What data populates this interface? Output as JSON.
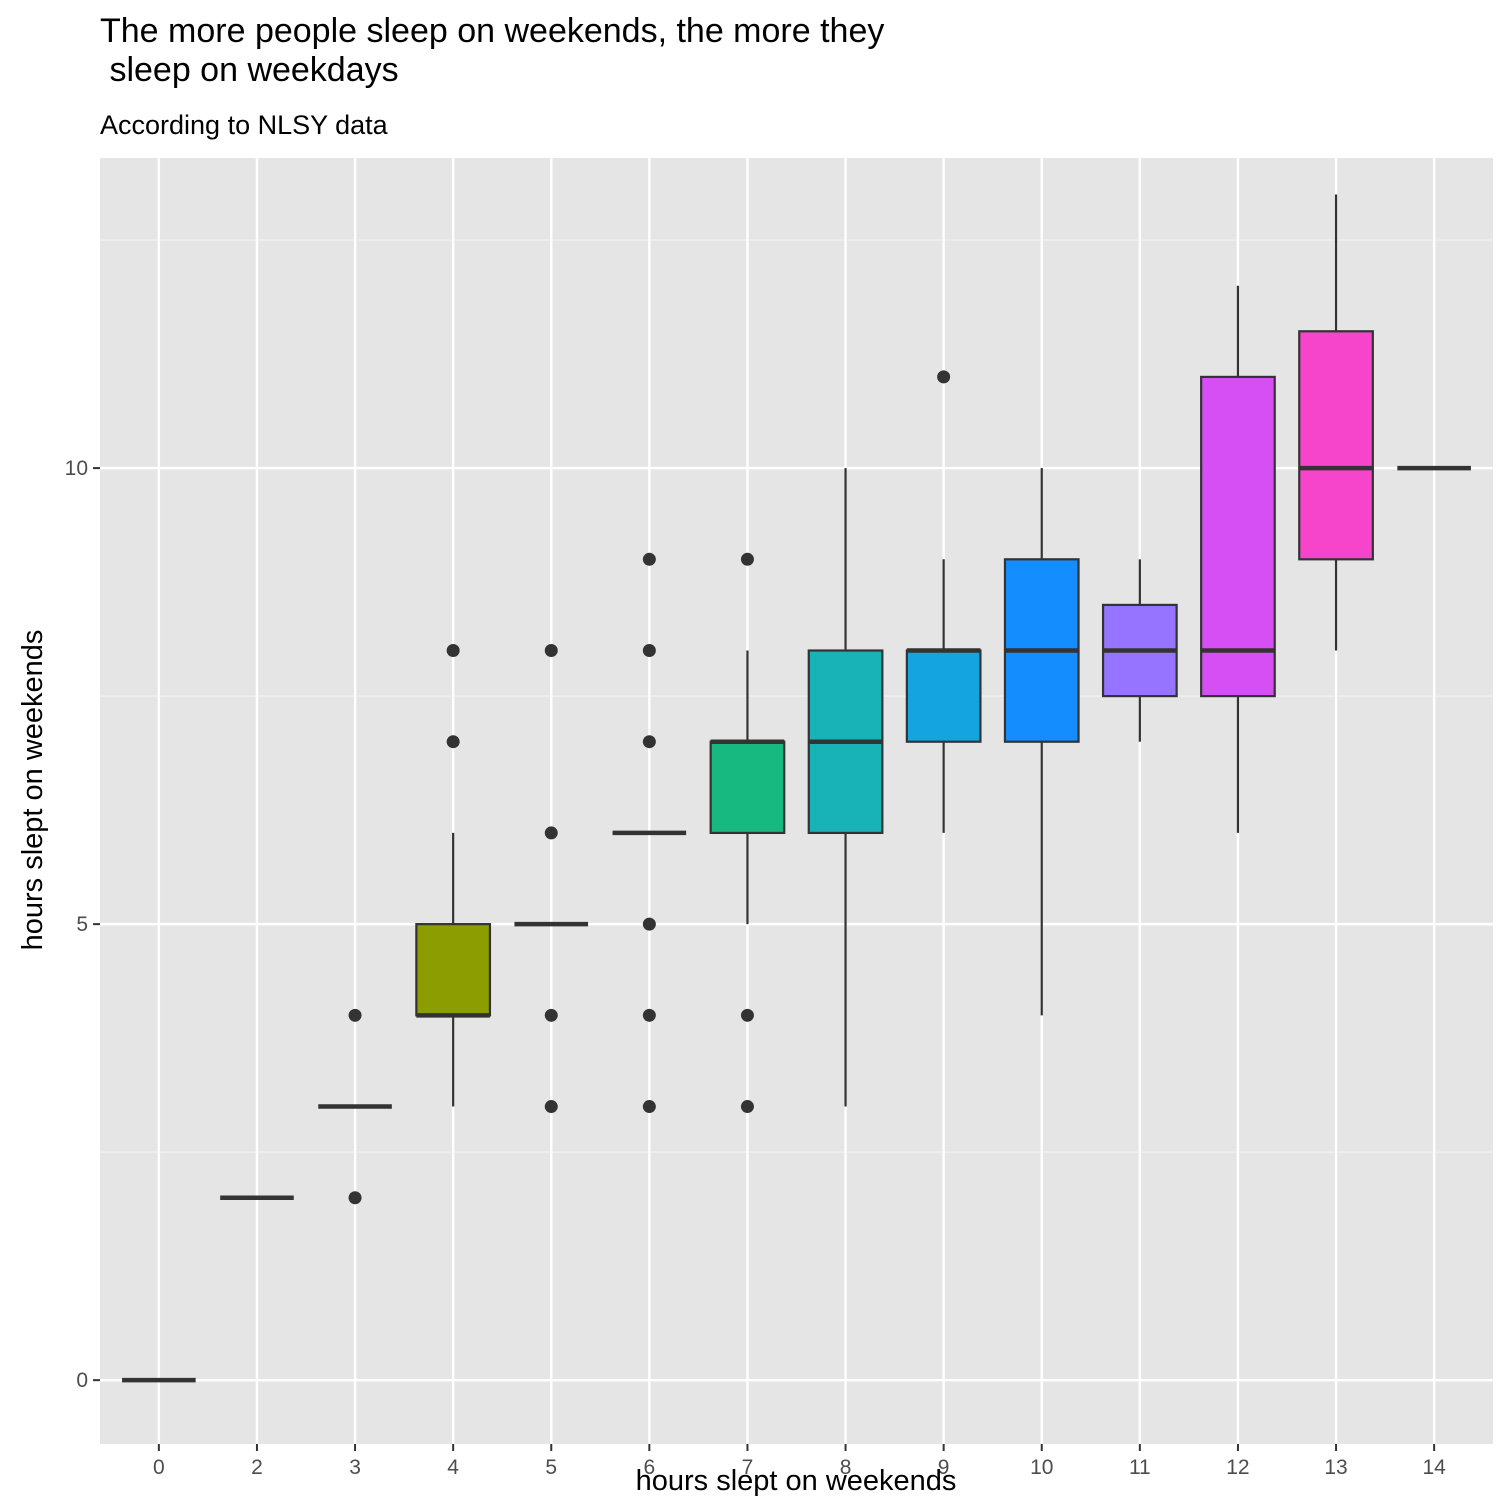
{
  "chart_data": {
    "type": "boxplot",
    "title": "The more people sleep on weekends, the more they\n sleep on weekdays",
    "subtitle": "According to NLSY data",
    "xlabel": "hours slept on weekends",
    "ylabel": "hours slept on weekends",
    "ylim": [
      -0.7,
      13.4
    ],
    "y_ticks": [
      0,
      5,
      10
    ],
    "grid": true,
    "legend": "none",
    "categories": [
      "0",
      "2",
      "3",
      "4",
      "5",
      "6",
      "7",
      "8",
      "9",
      "10",
      "11",
      "12",
      "13",
      "14"
    ],
    "boxes": [
      {
        "x": "0",
        "lower": 0,
        "q1": 0,
        "median": 0,
        "q3": 0,
        "upper": 0,
        "outliers": [],
        "color": "#F8766D"
      },
      {
        "x": "2",
        "lower": 2,
        "q1": 2,
        "median": 2,
        "q3": 2,
        "upper": 2,
        "outliers": [],
        "color": "#E18A00"
      },
      {
        "x": "3",
        "lower": 3,
        "q1": 3,
        "median": 3,
        "q3": 3,
        "upper": 3,
        "outliers": [
          4,
          2
        ],
        "color": "#BE9C00"
      },
      {
        "x": "4",
        "lower": 3,
        "q1": 4,
        "median": 4,
        "q3": 5,
        "upper": 6,
        "outliers": [
          8,
          7
        ],
        "color": "#8B9D00"
      },
      {
        "x": "5",
        "lower": 5,
        "q1": 5,
        "median": 5,
        "q3": 5,
        "upper": 5,
        "outliers": [
          8,
          6,
          4,
          3
        ],
        "color": "#24B700"
      },
      {
        "x": "6",
        "lower": 6,
        "q1": 6,
        "median": 6,
        "q3": 6,
        "upper": 6,
        "outliers": [
          9,
          8,
          7,
          5,
          4,
          3
        ],
        "color": "#00BE70"
      },
      {
        "x": "7",
        "lower": 5,
        "q1": 6,
        "median": 7,
        "q3": 7,
        "upper": 8,
        "outliers": [
          9,
          4,
          3
        ],
        "color": "#17B981"
      },
      {
        "x": "8",
        "lower": 3,
        "q1": 6,
        "median": 7,
        "q3": 8,
        "upper": 10,
        "outliers": [],
        "color": "#18B3B7"
      },
      {
        "x": "9",
        "lower": 6,
        "q1": 7,
        "median": 8,
        "q3": 8,
        "upper": 9,
        "outliers": [
          11
        ],
        "color": "#14A5E1"
      },
      {
        "x": "10",
        "lower": 4,
        "q1": 7,
        "median": 8,
        "q3": 9,
        "upper": 10,
        "outliers": [],
        "color": "#138DFF"
      },
      {
        "x": "11",
        "lower": 7,
        "q1": 7.5,
        "median": 8,
        "q3": 8.5,
        "upper": 9,
        "outliers": [],
        "color": "#9674FF"
      },
      {
        "x": "12",
        "lower": 6,
        "q1": 7.5,
        "median": 8,
        "q3": 11,
        "upper": 12,
        "outliers": [],
        "color": "#D54FF4"
      },
      {
        "x": "13",
        "lower": 8,
        "q1": 9,
        "median": 10,
        "q3": 11.5,
        "upper": 13,
        "outliers": [],
        "color": "#F645CB"
      },
      {
        "x": "14",
        "lower": 10,
        "q1": 10,
        "median": 10,
        "q3": 10,
        "upper": 10,
        "outliers": [],
        "color": "#FF61C3"
      }
    ]
  }
}
